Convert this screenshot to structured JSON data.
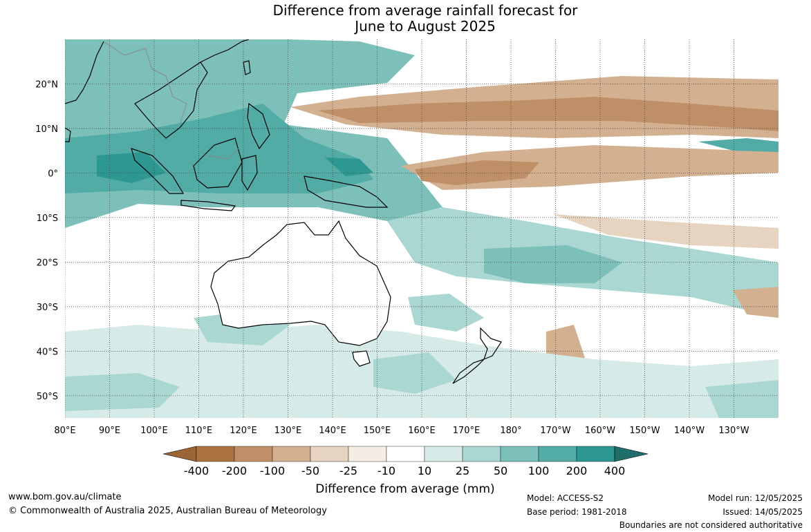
{
  "title_line1": "Difference from average rainfall forecast for",
  "title_line2": "June to August 2025",
  "lat_ticks": [
    {
      "label": "20°N",
      "lat": 20
    },
    {
      "label": "10°N",
      "lat": 10
    },
    {
      "label": "0°",
      "lat": 0
    },
    {
      "label": "10°S",
      "lat": -10
    },
    {
      "label": "20°S",
      "lat": -20
    },
    {
      "label": "30°S",
      "lat": -30
    },
    {
      "label": "40°S",
      "lat": -40
    },
    {
      "label": "50°S",
      "lat": -50
    }
  ],
  "lon_ticks": [
    {
      "label": "80°E",
      "lon": 80
    },
    {
      "label": "90°E",
      "lon": 90
    },
    {
      "label": "100°E",
      "lon": 100
    },
    {
      "label": "110°E",
      "lon": 110
    },
    {
      "label": "120°E",
      "lon": 120
    },
    {
      "label": "130°E",
      "lon": 130
    },
    {
      "label": "140°E",
      "lon": 140
    },
    {
      "label": "150°E",
      "lon": 150
    },
    {
      "label": "160°E",
      "lon": 160
    },
    {
      "label": "170°E",
      "lon": 170
    },
    {
      "label": "180°",
      "lon": 180
    },
    {
      "label": "170°W",
      "lon": 190
    },
    {
      "label": "160°W",
      "lon": 200
    },
    {
      "label": "150°W",
      "lon": 210
    },
    {
      "label": "140°W",
      "lon": 220
    },
    {
      "label": "130°W",
      "lon": 230
    }
  ],
  "extent": {
    "lon_min": 80,
    "lon_max": 240,
    "lat_min": -55,
    "lat_max": 30
  },
  "legend": {
    "title": "Difference from average (mm)",
    "labels": [
      "-400",
      "-200",
      "-100",
      "-50",
      "-25",
      "-10",
      "10",
      "25",
      "50",
      "100",
      "200",
      "400"
    ],
    "colors": [
      "#9c6535",
      "#ab7340",
      "#bf9068",
      "#d3b08f",
      "#e6d3c0",
      "#f3ede6",
      "#ffffff",
      "#d6ebe8",
      "#aad7d2",
      "#7dc0ba",
      "#52aba5",
      "#2d9791",
      "#1f6e6a"
    ]
  },
  "footer": {
    "website": "www.bom.gov.au/climate",
    "copyright": "© Commonwealth of Australia 2025, Australian Bureau of Meteorology",
    "model": "Model: ACCESS-S2",
    "base_period": "Base period: 1981-2018",
    "model_run": "Model run: 12/05/2025",
    "issued": "Issued: 14/05/2025",
    "boundaries": "Boundaries are not considered authoritative"
  }
}
